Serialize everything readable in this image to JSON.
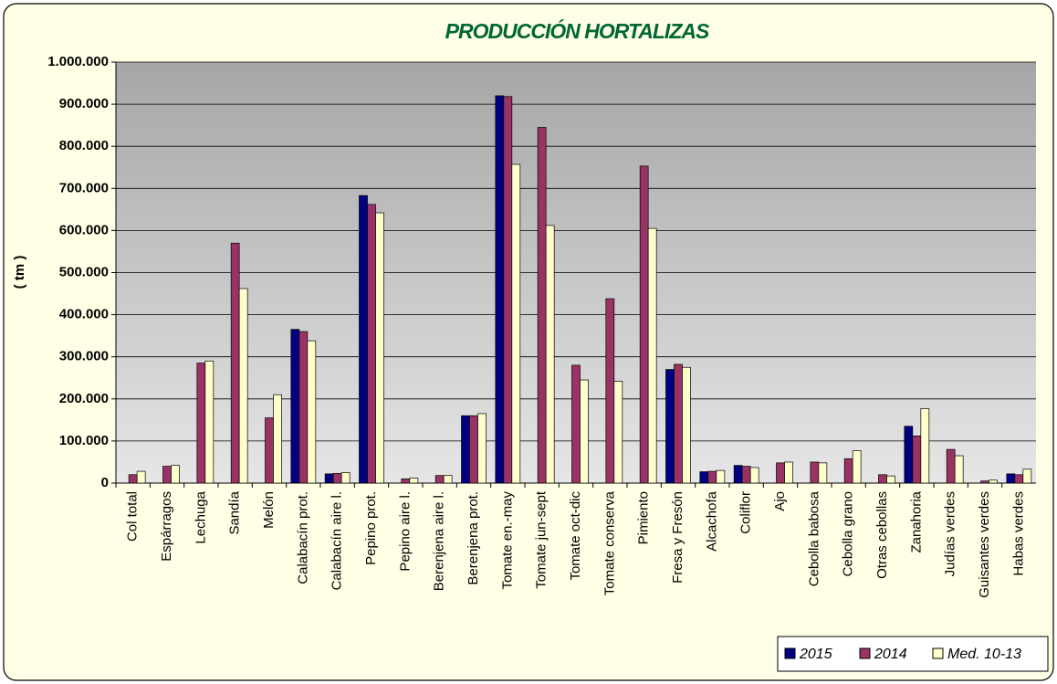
{
  "chart_data": {
    "type": "bar",
    "title": "PRODUCCIÓN HORTALIZAS",
    "y_label": "( tm )",
    "categories": [
      "Col total",
      "Espárragos",
      "Lechuga",
      "Sandía",
      "Melón",
      "Calabacín prot.",
      "Calabacín aire l.",
      "Pepino prot.",
      "Pepino aire l.",
      "Berenjena aire l.",
      "Berenjena prot.",
      "Tomate en.-may",
      "Tomate jun-sept",
      "Tomate oct-dic",
      "Tomate conserva",
      "Pimiento",
      "Fresa y Fresón",
      "Alcachofa",
      "Coliflor",
      "Ajo",
      "Cebolla babosa",
      "Cebolla grano",
      "Otras cebollas",
      "Zanahoria",
      "Judías verdes",
      "Guisantes verdes",
      "Habas verdes"
    ],
    "series": [
      {
        "name": "2015",
        "color": "#000080",
        "values": [
          null,
          null,
          null,
          null,
          null,
          365000,
          22000,
          683000,
          null,
          null,
          160000,
          920000,
          null,
          null,
          null,
          null,
          270000,
          27000,
          42000,
          null,
          null,
          null,
          null,
          135000,
          null,
          null,
          22000
        ]
      },
      {
        "name": "2014",
        "color": "#993366",
        "values": [
          20000,
          40000,
          285000,
          570000,
          155000,
          360000,
          23000,
          662000,
          10000,
          18000,
          160000,
          918000,
          845000,
          280000,
          438000,
          753000,
          282000,
          28000,
          40000,
          48000,
          50000,
          58000,
          20000,
          112000,
          80000,
          5000,
          20000
        ]
      },
      {
        "name": "Med. 10-13",
        "color": "#ffffcc",
        "values": [
          28000,
          42000,
          290000,
          462000,
          210000,
          338000,
          25000,
          642000,
          12000,
          18000,
          165000,
          757000,
          612000,
          245000,
          242000,
          605000,
          275000,
          30000,
          37000,
          50000,
          48000,
          77000,
          17000,
          177000,
          65000,
          7000,
          33000
        ]
      }
    ],
    "ylim": [
      0,
      1000000
    ],
    "yticks": [
      0,
      {
        "value": 100000,
        "label": "100.000"
      },
      {
        "value": 200000,
        "label": "200.000"
      },
      {
        "value": 300000,
        "label": "300.000"
      },
      {
        "value": 400000,
        "label": "400.000"
      },
      {
        "value": 500000,
        "label": "500.000"
      },
      {
        "value": 600000,
        "label": "600.000"
      },
      {
        "value": 700000,
        "label": "700.000"
      },
      {
        "value": 800000,
        "label": "800.000"
      },
      {
        "value": 900000,
        "label": "900.000"
      },
      {
        "value": 1000000,
        "label": "1.000.000"
      }
    ],
    "grid": true,
    "legend": "bottom-right"
  }
}
